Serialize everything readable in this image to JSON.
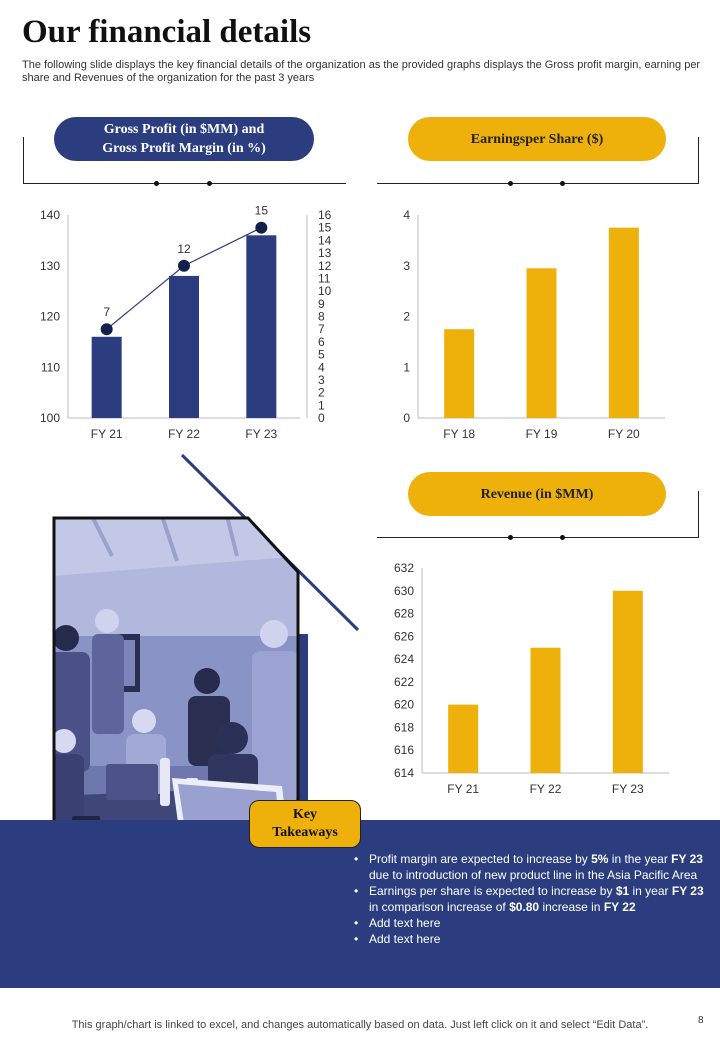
{
  "header": {
    "title": "Our financial details",
    "subtitle": "The following slide displays the key financial details of the organization as the provided graphs displays the Gross profit margin, earning per share and Revenues of the organization for the past 3 years"
  },
  "colors": {
    "navy": "#2c3d7f",
    "gold": "#eeb00b"
  },
  "panels": {
    "gross_profit": {
      "title_line1": "Gross Profit  (in $MM) and",
      "title_line2": "Gross Profit  Margin  (in %)"
    },
    "eps": {
      "title": "Earningsper  Share ($)"
    },
    "revenue": {
      "title": "Revenue (in $MM)"
    }
  },
  "chart_data": [
    {
      "type": "bar",
      "categories": [
        "FY 21",
        "FY 22",
        "FY 23"
      ],
      "series": [
        {
          "kind": "bar",
          "axis": "left",
          "values": [
            116,
            128,
            136
          ]
        },
        {
          "kind": "line",
          "axis": "right",
          "values": [
            7,
            12,
            15
          ]
        }
      ],
      "ylim": [
        100,
        140
      ],
      "y_ticks": [
        100,
        110,
        120,
        130,
        140
      ],
      "y2lim": [
        0,
        16
      ],
      "y2_ticks": [
        0,
        1,
        2,
        3,
        4,
        5,
        6,
        7,
        8,
        9,
        10,
        11,
        12,
        13,
        14,
        15,
        16
      ],
      "data_labels": [
        "7",
        "12",
        "15"
      ],
      "colors": {
        "bar": "#2c3d7f",
        "line": "#2c3d7f"
      }
    },
    {
      "type": "bar",
      "categories": [
        "FY 18",
        "FY 19",
        "FY 20"
      ],
      "values": [
        1.75,
        2.95,
        3.75
      ],
      "ylim": [
        0,
        4
      ],
      "y_ticks": [
        0,
        1,
        2,
        3,
        4
      ],
      "color": "#eeb00b"
    },
    {
      "type": "bar",
      "categories": [
        "FY 21",
        "FY 22",
        "FY 23"
      ],
      "values": [
        620,
        625,
        630
      ],
      "ylim": [
        614,
        632
      ],
      "y_ticks": [
        614,
        616,
        618,
        620,
        622,
        624,
        626,
        628,
        630,
        632
      ],
      "color": "#eeb00b"
    }
  ],
  "key_takeaways": {
    "label_line1": "Key",
    "label_line2": "Takeaways",
    "items": [
      {
        "t1": "Profit margin are expected to increase by ",
        "b1": "5%",
        "t2": " in the year ",
        "b2": "FY 23",
        "t3": " due to introduction of new product line in the Asia Pacific Area",
        "b3": "",
        "t4": "",
        "b4": ""
      },
      {
        "t1": "Earnings per share is expected to increase by ",
        "b1": "$1",
        "t2": " in year ",
        "b2": "FY 23",
        "t3": " in comparison  increase of ",
        "b3": "$0.80",
        "t4": " increase in ",
        "b4": "FY 22"
      },
      {
        "t1": "Add text here",
        "b1": "",
        "t2": "",
        "b2": "",
        "t3": "",
        "b3": "",
        "t4": "",
        "b4": ""
      },
      {
        "t1": "Add text here",
        "b1": "",
        "t2": "",
        "b2": "",
        "t3": "",
        "b3": "",
        "t4": "",
        "b4": ""
      }
    ]
  },
  "footer": {
    "note": "This graph/chart is linked to excel,  and changes automatically based on data. Just left click on it and select “Edit Data”.",
    "page_number": "8"
  }
}
